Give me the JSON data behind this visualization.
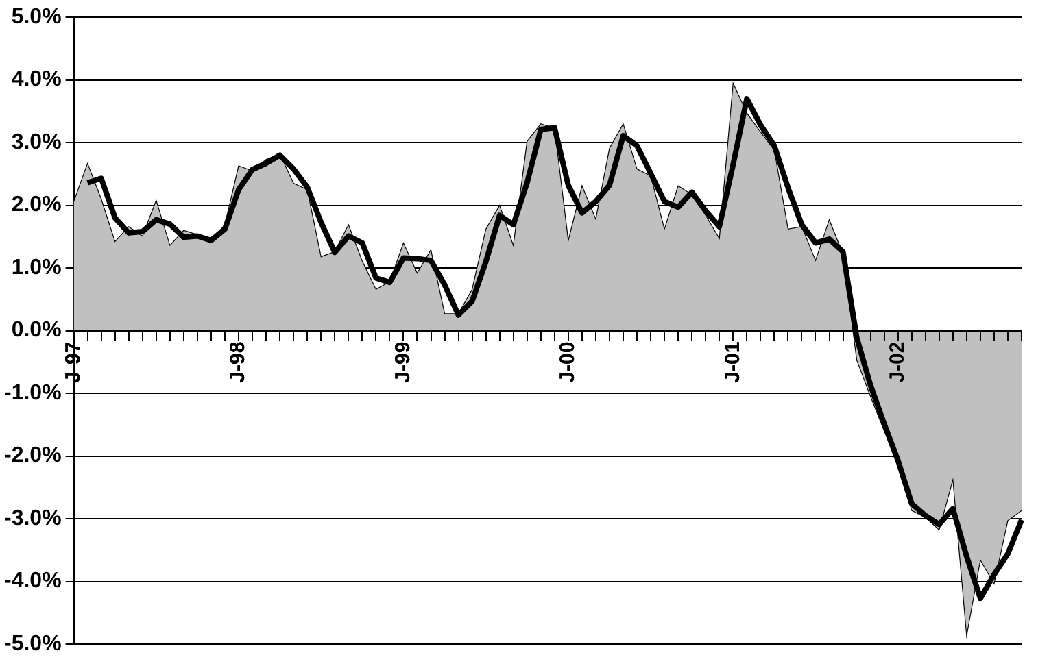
{
  "chart_data": {
    "type": "area",
    "categories": [
      "J-97",
      null,
      null,
      null,
      null,
      null,
      null,
      null,
      null,
      null,
      null,
      null,
      "J-98",
      null,
      null,
      null,
      null,
      null,
      null,
      null,
      null,
      null,
      null,
      null,
      "J-99",
      null,
      null,
      null,
      null,
      null,
      null,
      null,
      null,
      null,
      null,
      null,
      "J-00",
      null,
      null,
      null,
      null,
      null,
      null,
      null,
      null,
      null,
      null,
      null,
      "J-01",
      null,
      null,
      null,
      null,
      null,
      null,
      null,
      null,
      null,
      null,
      null,
      "J-02",
      null,
      null,
      null,
      null,
      null,
      null,
      null,
      null,
      null
    ],
    "series": [
      {
        "type": "area",
        "color": "#c0c0c0",
        "values": [
          2.06,
          2.67,
          2.1,
          1.42,
          1.66,
          1.51,
          2.08,
          1.36,
          1.6,
          1.53,
          1.44,
          1.69,
          2.63,
          2.55,
          2.73,
          2.82,
          2.35,
          2.25,
          1.18,
          1.26,
          1.69,
          1.11,
          0.66,
          0.78,
          1.4,
          0.92,
          1.29,
          0.27,
          0.27,
          0.66,
          1.62,
          2.0,
          1.36,
          3.02,
          3.3,
          3.23,
          1.44,
          2.31,
          1.78,
          2.91,
          3.3,
          2.58,
          2.47,
          1.62,
          2.31,
          2.17,
          1.84,
          1.47,
          3.95,
          3.47,
          3.17,
          2.88,
          1.62,
          1.66,
          1.12,
          1.77,
          1.22,
          -0.47,
          -1.05,
          -1.6,
          -2.07,
          -2.87,
          -2.98,
          -3.18,
          -2.38,
          -4.87,
          -3.66,
          -4.04,
          -3.03,
          -2.87
        ]
      },
      {
        "type": "line",
        "color": "#000000",
        "values": [
          null,
          2.36,
          2.43,
          1.8,
          1.56,
          1.58,
          1.77,
          1.7,
          1.49,
          1.51,
          1.44,
          1.62,
          2.25,
          2.57,
          2.67,
          2.8,
          2.58,
          2.29,
          1.73,
          1.25,
          1.51,
          1.4,
          0.84,
          0.77,
          1.16,
          1.15,
          1.12,
          0.73,
          0.25,
          0.47,
          1.1,
          1.84,
          1.69,
          2.36,
          3.21,
          3.24,
          2.32,
          1.88,
          2.06,
          2.32,
          3.11,
          2.95,
          2.51,
          2.06,
          1.97,
          2.21,
          1.91,
          1.66,
          2.65,
          3.7,
          3.28,
          2.95,
          2.28,
          1.69,
          1.4,
          1.46,
          1.26,
          -0.11,
          -0.87,
          -1.49,
          -2.07,
          -2.76,
          -2.95,
          -3.09,
          -2.84,
          -3.6,
          -4.27,
          -3.89,
          -3.56,
          -3.02
        ]
      }
    ],
    "ylim": [
      -5,
      5
    ],
    "yticks": [
      {
        "value": -5,
        "label": "-5.0%"
      },
      {
        "value": -4,
        "label": "-4.0%"
      },
      {
        "value": -3,
        "label": "-3.0%"
      },
      {
        "value": -2,
        "label": "-2.0%"
      },
      {
        "value": -1,
        "label": "-1.0%"
      },
      {
        "value": 0,
        "label": "0.0%"
      },
      {
        "value": 1,
        "label": "1.0%"
      },
      {
        "value": 2,
        "label": "2.0%"
      },
      {
        "value": 3,
        "label": "3.0%"
      },
      {
        "value": 4,
        "label": "4.0%"
      },
      {
        "value": 5,
        "label": "5.0%"
      }
    ],
    "grid": "y",
    "legend": false
  }
}
